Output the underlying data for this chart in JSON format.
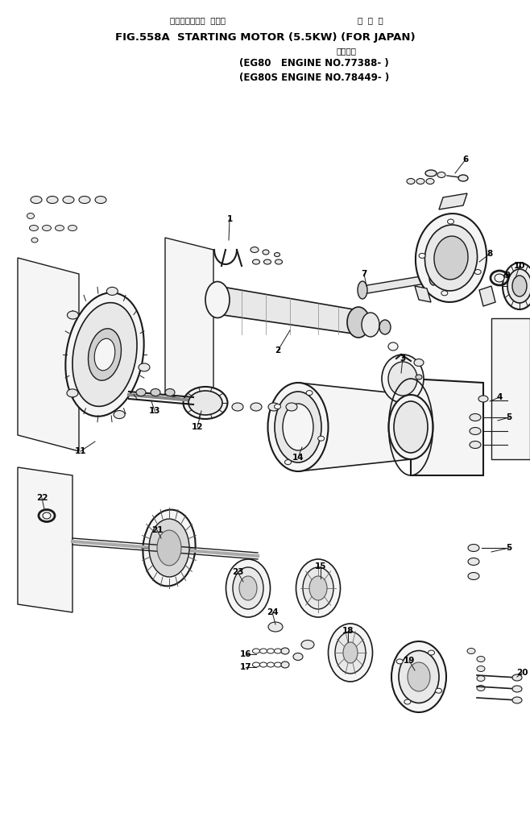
{
  "title_jp": "スターティング  モータ",
  "title_jp2": "国  内  外",
  "title_main": "FIG.558A  STARTING MOTOR (5.5KW) (FOR JAPAN)",
  "title_sub_jp": "適用号機",
  "title_eg80": "(EG80   ENGINE NO.77388- )",
  "title_eg80s": "(EG80S ENGINE NO.78449- )",
  "bg_color": "#ffffff",
  "text_color": "#000000",
  "figsize": [
    6.58,
    10.14
  ],
  "dpi": 100
}
